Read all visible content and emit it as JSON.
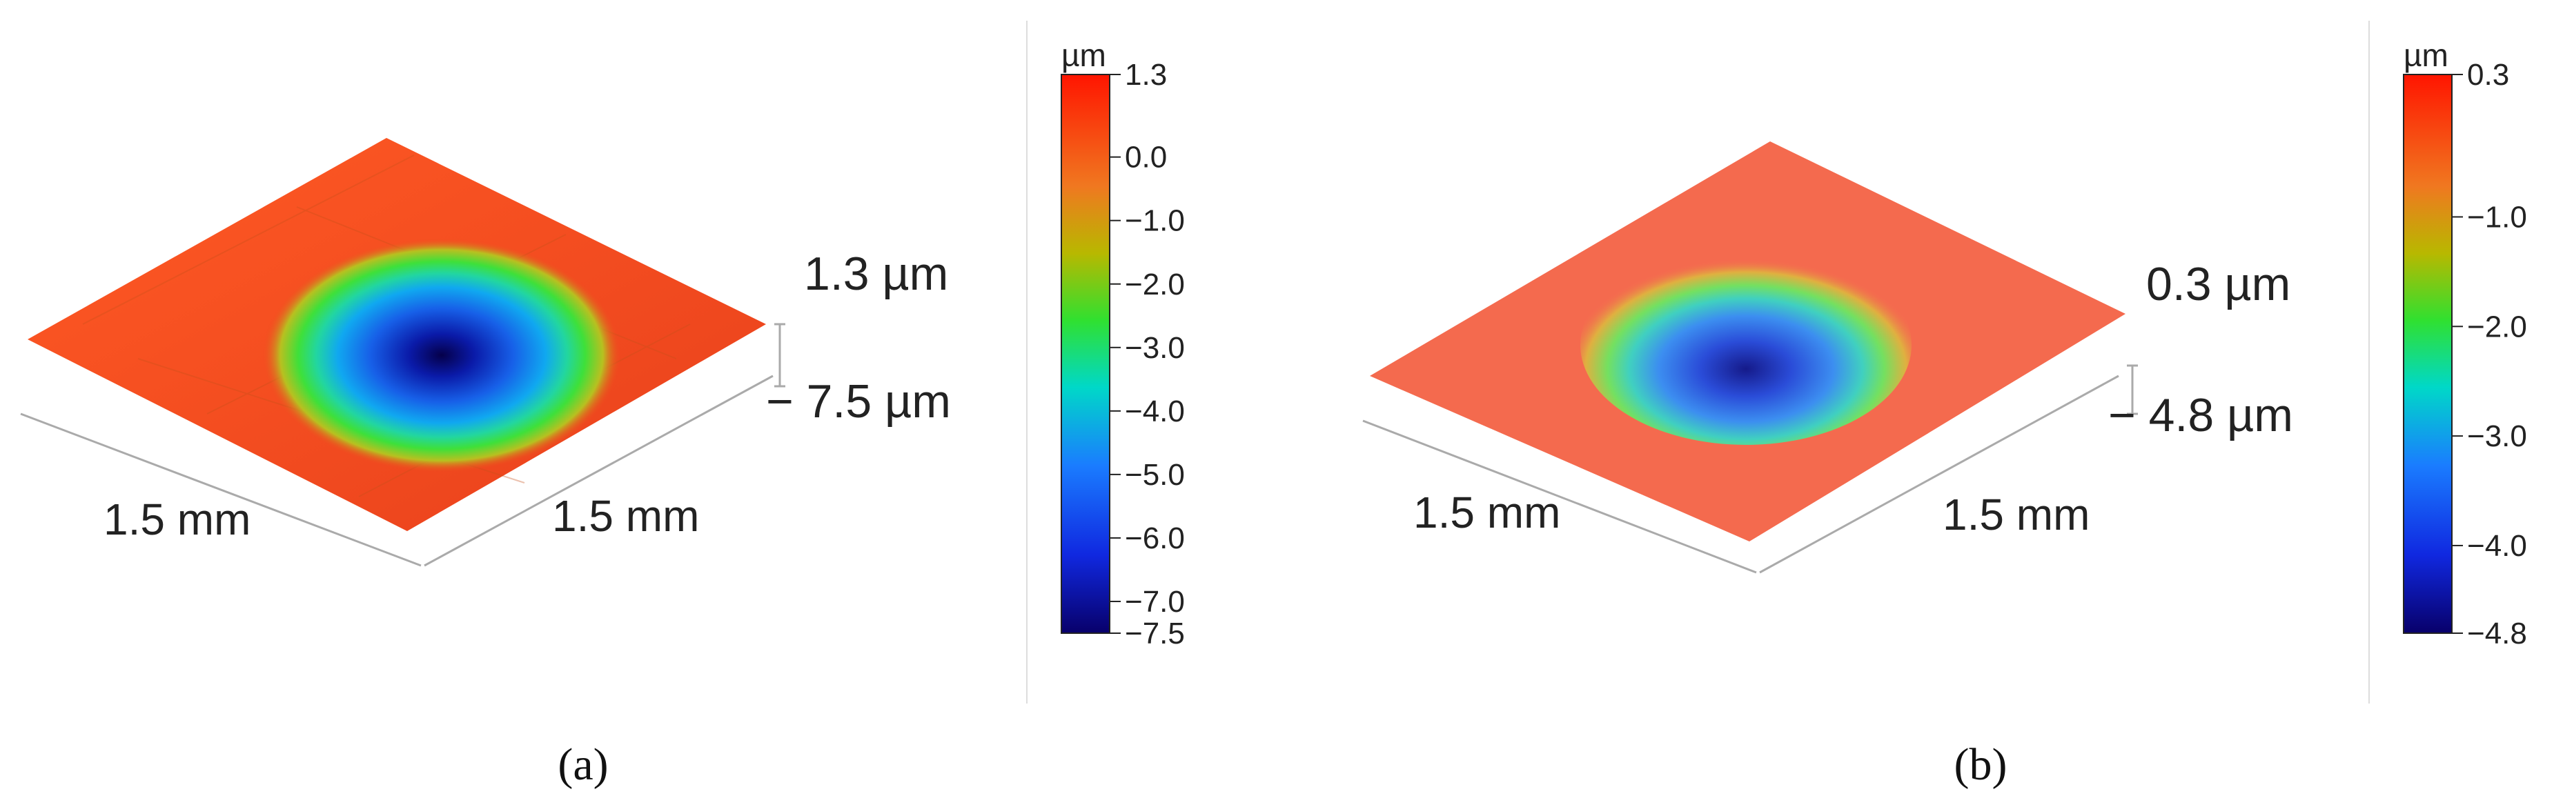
{
  "panels": [
    {
      "label": "(a)",
      "top_height": "1.3 µm",
      "bottom_depth": "− 7.5 µm",
      "x_span": "1.5 mm",
      "y_span": "1.5 mm",
      "colorbar": {
        "unit": "µm",
        "ticks": [
          {
            "value": 1.3,
            "label": "1.3"
          },
          {
            "value": 0.0,
            "label": "0.0"
          },
          {
            "value": -1.0,
            "label": "−1.0"
          },
          {
            "value": -2.0,
            "label": "−2.0"
          },
          {
            "value": -3.0,
            "label": "−3.0"
          },
          {
            "value": -4.0,
            "label": "−4.0"
          },
          {
            "value": -5.0,
            "label": "−5.0"
          },
          {
            "value": -6.0,
            "label": "−6.0"
          },
          {
            "value": -7.0,
            "label": "−7.0"
          },
          {
            "value": -7.5,
            "label": "−7.5"
          }
        ]
      }
    },
    {
      "label": "(b)",
      "top_height": "0.3 µm",
      "bottom_depth": "− 4.8 µm",
      "x_span": "1.5 mm",
      "y_span": "1.5 mm",
      "colorbar": {
        "unit": "µm",
        "ticks": [
          {
            "value": 0.3,
            "label": "0.3"
          },
          {
            "value": -1.0,
            "label": "−1.0"
          },
          {
            "value": -2.0,
            "label": "−2.0"
          },
          {
            "value": -3.0,
            "label": "−3.0"
          },
          {
            "value": -4.0,
            "label": "−4.0"
          },
          {
            "value": -4.8,
            "label": "−4.8"
          }
        ]
      }
    }
  ],
  "colors": {
    "surface_a": "#f0461e",
    "surface_b": "#f46a4e",
    "colorbar_gradient": [
      "#08006a",
      "#1540ff",
      "#00c8ff",
      "#22e040",
      "#c8b400",
      "#ff7a10",
      "#ff1a00"
    ]
  }
}
